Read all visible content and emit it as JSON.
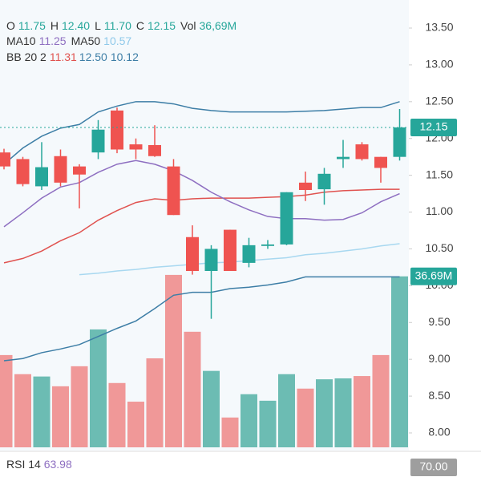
{
  "chart_data": {
    "type": "candlestick",
    "legend": [
      {
        "label": "O",
        "value": "11.75",
        "color": "#26a69a"
      },
      {
        "label": "H",
        "value": "12.40",
        "color": "#26a69a"
      },
      {
        "label": "L",
        "value": "11.70",
        "color": "#26a69a"
      },
      {
        "label": "C",
        "value": "12.15",
        "color": "#26a69a"
      },
      {
        "label": "Vol",
        "value": "36,69M",
        "color": "#26a69a"
      }
    ],
    "ma_legend": [
      {
        "label": "MA10",
        "value": "11.25",
        "color": "#8e6fc1"
      },
      {
        "label": "MA50",
        "value": "10.57",
        "color": "#8fc9ea"
      }
    ],
    "bb_legend": {
      "label": "BB 20 2",
      "values": [
        "11.31",
        "12.50",
        "10.12"
      ],
      "colors": [
        "#e0524f",
        "#3d7ea6",
        "#3d7ea6"
      ]
    },
    "open": [
      11.81,
      11.72,
      11.35,
      11.76,
      11.62,
      11.81,
      12.38,
      11.92,
      11.91,
      11.62,
      10.66,
      10.2,
      10.76,
      10.31,
      10.54,
      10.56,
      11.4,
      11.31,
      11.72,
      11.92,
      11.75,
      11.75
    ],
    "high": [
      11.86,
      11.75,
      11.95,
      11.85,
      11.65,
      12.25,
      12.42,
      12.0,
      12.18,
      11.72,
      10.82,
      10.55,
      10.76,
      10.65,
      10.62,
      11.27,
      11.55,
      11.6,
      11.98,
      11.95,
      11.75,
      12.4
    ],
    "low": [
      11.58,
      11.35,
      11.3,
      11.35,
      11.05,
      11.72,
      11.8,
      11.72,
      11.75,
      10.96,
      10.15,
      9.55,
      10.2,
      10.25,
      10.5,
      10.55,
      11.15,
      11.1,
      11.6,
      11.7,
      11.4,
      11.7
    ],
    "close": [
      11.62,
      11.38,
      11.61,
      11.4,
      11.51,
      12.12,
      11.85,
      11.85,
      11.76,
      10.96,
      10.2,
      10.5,
      10.2,
      10.55,
      10.56,
      11.27,
      11.3,
      11.52,
      11.75,
      11.72,
      11.6,
      12.15
    ],
    "up_color": "#26a69a",
    "down_color": "#ef5350",
    "volume": [
      19.8,
      15.7,
      15.2,
      13.1,
      17.4,
      25.3,
      13.8,
      9.8,
      19.1,
      37.0,
      24.8,
      16.4,
      6.4,
      11.4,
      10.0,
      15.7,
      12.6,
      14.6,
      14.8,
      15.3,
      19.8,
      36.69
    ],
    "volume_up_color": "#6cbcb3",
    "volume_down_color": "#f09898",
    "vol_lim": [
      0,
      37.5
    ],
    "volume_last_label": "36.69M",
    "series": [
      {
        "name": "BB upper",
        "color": "#3d7ea6",
        "values": [
          11.65,
          11.87,
          12.03,
          12.14,
          12.19,
          12.36,
          12.44,
          12.5,
          12.5,
          12.47,
          12.41,
          12.38,
          12.36,
          12.36,
          12.36,
          12.36,
          12.37,
          12.38,
          12.4,
          12.42,
          12.42,
          12.5
        ]
      },
      {
        "name": "BB lower",
        "color": "#3d7ea6",
        "values": [
          8.98,
          9.01,
          9.09,
          9.14,
          9.2,
          9.31,
          9.42,
          9.52,
          9.69,
          9.87,
          9.91,
          9.91,
          9.96,
          9.98,
          10.01,
          10.05,
          10.12,
          10.12,
          10.12,
          10.12,
          10.12,
          10.12
        ]
      },
      {
        "name": "BB middle",
        "color": "#e0524f",
        "values": [
          10.31,
          10.37,
          10.47,
          10.61,
          10.72,
          10.89,
          11.02,
          11.13,
          11.18,
          11.16,
          11.18,
          11.19,
          11.19,
          11.19,
          11.2,
          11.21,
          11.23,
          11.27,
          11.29,
          11.3,
          11.31,
          11.31
        ]
      },
      {
        "name": "MA10",
        "color": "#8e6fc1",
        "values": [
          10.8,
          10.99,
          11.19,
          11.34,
          11.4,
          11.54,
          11.65,
          11.7,
          11.65,
          11.56,
          11.43,
          11.27,
          11.14,
          11.03,
          10.94,
          10.91,
          10.91,
          10.89,
          10.9,
          10.99,
          11.14,
          11.25
        ]
      },
      {
        "name": "MA50",
        "color": "#a8d8f0",
        "values": [
          null,
          null,
          null,
          null,
          10.15,
          10.17,
          10.2,
          10.22,
          10.25,
          10.27,
          10.29,
          10.31,
          10.32,
          10.34,
          10.36,
          10.38,
          10.42,
          10.44,
          10.47,
          10.5,
          10.54,
          10.57
        ]
      }
    ],
    "ylim": [
      8.0,
      13.5
    ],
    "yticks": [
      {
        "value": 8.0,
        "label": "8.00"
      },
      {
        "value": 8.5,
        "label": "8.50"
      },
      {
        "value": 9.0,
        "label": "9.00"
      },
      {
        "value": 9.5,
        "label": "9.50"
      },
      {
        "value": 10.0,
        "label": "10.00"
      },
      {
        "value": 10.5,
        "label": "10.50"
      },
      {
        "value": 11.0,
        "label": "11.00"
      },
      {
        "value": 11.5,
        "label": "11.50"
      },
      {
        "value": 12.0,
        "label": "12.00"
      },
      {
        "value": 12.5,
        "label": "12.50"
      },
      {
        "value": 13.0,
        "label": "13.00"
      },
      {
        "value": 13.5,
        "label": "13.50"
      }
    ],
    "rsi": {
      "label": "RSI 14",
      "value": "63.98",
      "value_color": "#8e6fc1",
      "level_label": "70.00"
    }
  }
}
